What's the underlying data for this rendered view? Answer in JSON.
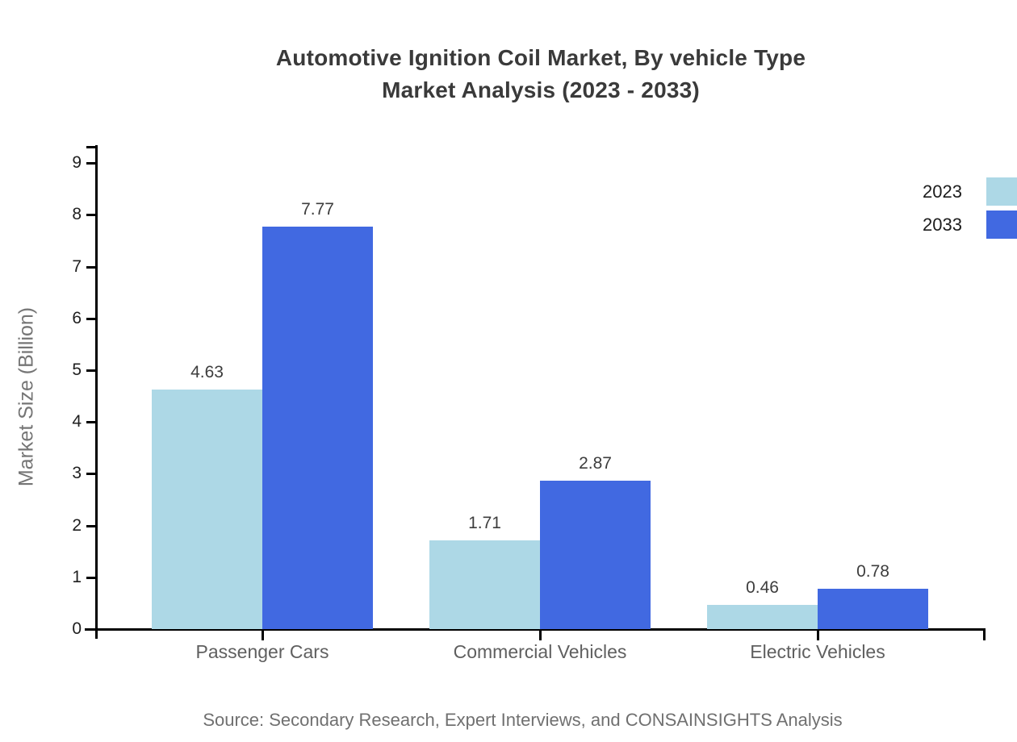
{
  "header": {
    "title_line1": "Automotive Ignition Coil Market, By vehicle Type",
    "title_line2": "Market Analysis (2023 - 2033)"
  },
  "chart_data": {
    "type": "bar",
    "title": "Automotive Ignition Coil Market, By vehicle Type Market Analysis (2023 - 2033)",
    "categories": [
      "Passenger Cars",
      "Commercial Vehicles",
      "Electric Vehicles"
    ],
    "series": [
      {
        "name": "2023",
        "color": "#ADD8E6",
        "values": [
          4.63,
          1.71,
          0.46
        ]
      },
      {
        "name": "2033",
        "color": "#4169E1",
        "values": [
          7.77,
          2.87,
          0.78
        ]
      }
    ],
    "xlabel": "",
    "ylabel": "Market Size (Billion)",
    "ylim": [
      0,
      9.3
    ],
    "yticks": [
      0,
      1,
      2,
      3,
      4,
      5,
      6,
      7,
      8,
      9
    ],
    "grid": false,
    "legend_position": "upper-right",
    "value_labels_shown": true,
    "axis_color": "#000000"
  },
  "footer": {
    "source": "Source: Secondary Research, Expert Interviews, and CONSAINSIGHTS Analysis"
  },
  "colors": {
    "background": "#ffffff",
    "title_text": "#3a3a3a",
    "tick_text": "#1f1f1f",
    "category_text": "#5f5f5f",
    "value_text": "#3d3d3d",
    "axis_title_text": "#757575",
    "legend_text": "#1c1c1c",
    "source_text": "#707070"
  }
}
